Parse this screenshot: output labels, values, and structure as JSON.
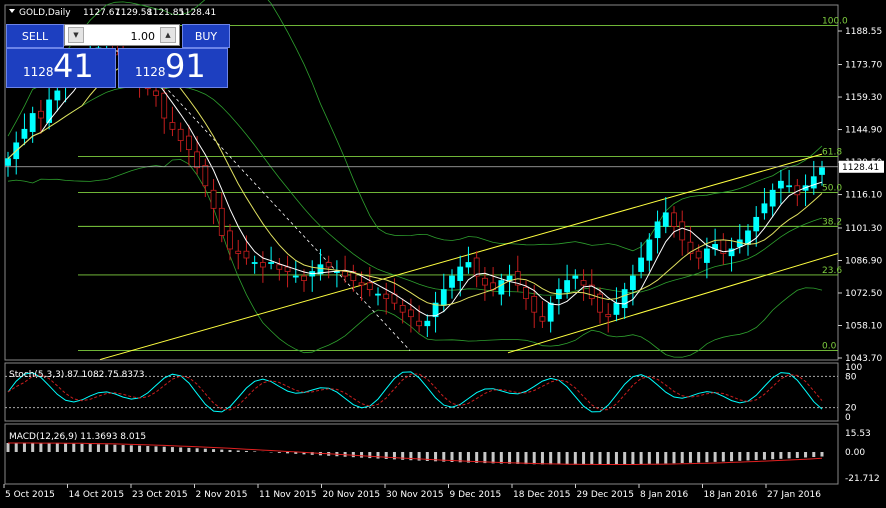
{
  "header": {
    "symbol": "GOLD,Daily",
    "open": "1127.67",
    "high": "1129.58",
    "low": "1121.85",
    "close": "1128.41"
  },
  "trade_panel": {
    "sell_label": "SELL",
    "buy_label": "BUY",
    "lot_value": "1.00",
    "sell_small": "1128",
    "sell_big": "41",
    "buy_small": "1128",
    "buy_big": "91"
  },
  "price_axis": [
    "1188.55",
    "1173.70",
    "1159.30",
    "1144.90",
    "1130.50",
    "1116.10",
    "1101.30",
    "1086.90",
    "1072.50",
    "1058.10",
    "1043.70"
  ],
  "current_price": "1128.41",
  "fib_levels": [
    {
      "label": "100.0",
      "price": 1191.0
    },
    {
      "label": "61.8",
      "price": 1133.0
    },
    {
      "label": "50.0",
      "price": 1117.0
    },
    {
      "label": "38.2",
      "price": 1102.0
    },
    {
      "label": "23.6",
      "price": 1080.5
    },
    {
      "label": "0.0",
      "price": 1047.0
    }
  ],
  "stoch": {
    "label": "Stoch(5,3,3) 87.1082 75.8373",
    "levels": [
      "100",
      "80",
      "20",
      "0"
    ]
  },
  "macd": {
    "label": "MACD(12,26,9) 11.3693 8.015",
    "levels": [
      "15.53",
      "0.00",
      "-21.712"
    ]
  },
  "time_axis": [
    "5 Oct 2015",
    "14 Oct 2015",
    "23 Oct 2015",
    "2 Nov 2015",
    "11 Nov 2015",
    "20 Nov 2015",
    "30 Nov 2015",
    "9 Dec 2015",
    "18 Dec 2015",
    "29 Dec 2015",
    "8 Jan 2016",
    "18 Jan 2016",
    "27 Jan 2016"
  ],
  "colors": {
    "bull": "#00ffff",
    "bear": "#c81e1e",
    "channel": "#ffff40",
    "fib": "#7fcf3f",
    "bollinger": "#2ea02e",
    "ma": "#ffffff",
    "ma2": "#e0e060",
    "panel": "#1d3fc0"
  }
}
